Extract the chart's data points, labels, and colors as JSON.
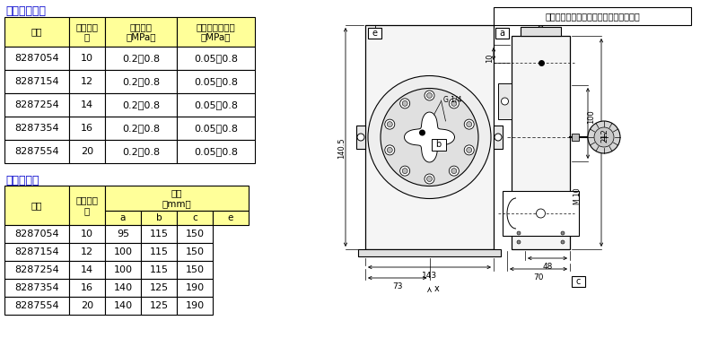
{
  "title1": "＜個別仕様＞",
  "title2": "＜寸法表＞",
  "header_bg": "#FFFF99",
  "border_color": "#000000",
  "table1_headers": [
    "型式",
    "ポイント\n数",
    "供給圧力\n（MPa）",
    "パイロット圧力\n（MPa）"
  ],
  "table1_data": [
    [
      "8287054",
      "10",
      "0.2～0.8",
      "0.05～0.8"
    ],
    [
      "8287154",
      "12",
      "0.2～0.8",
      "0.05～0.8"
    ],
    [
      "8287254",
      "14",
      "0.2～0.8",
      "0.05～0.8"
    ],
    [
      "8287354",
      "16",
      "0.2～0.8",
      "0.05～0.8"
    ],
    [
      "8287554",
      "20",
      "0.2～0.8",
      "0.05～0.8"
    ]
  ],
  "table2_data": [
    [
      "8287054",
      "10",
      "95",
      "115",
      "150"
    ],
    [
      "8287154",
      "12",
      "100",
      "115",
      "150"
    ],
    [
      "8287254",
      "14",
      "100",
      "115",
      "150"
    ],
    [
      "8287354",
      "16",
      "140",
      "125",
      "190"
    ],
    [
      "8287554",
      "20",
      "140",
      "125",
      "190"
    ]
  ],
  "diagram_note": "ワイパーアームボジションの表示ドット",
  "title_color": "#0000CC",
  "text_color": "#000000",
  "bg_color": "#FFFFFF"
}
